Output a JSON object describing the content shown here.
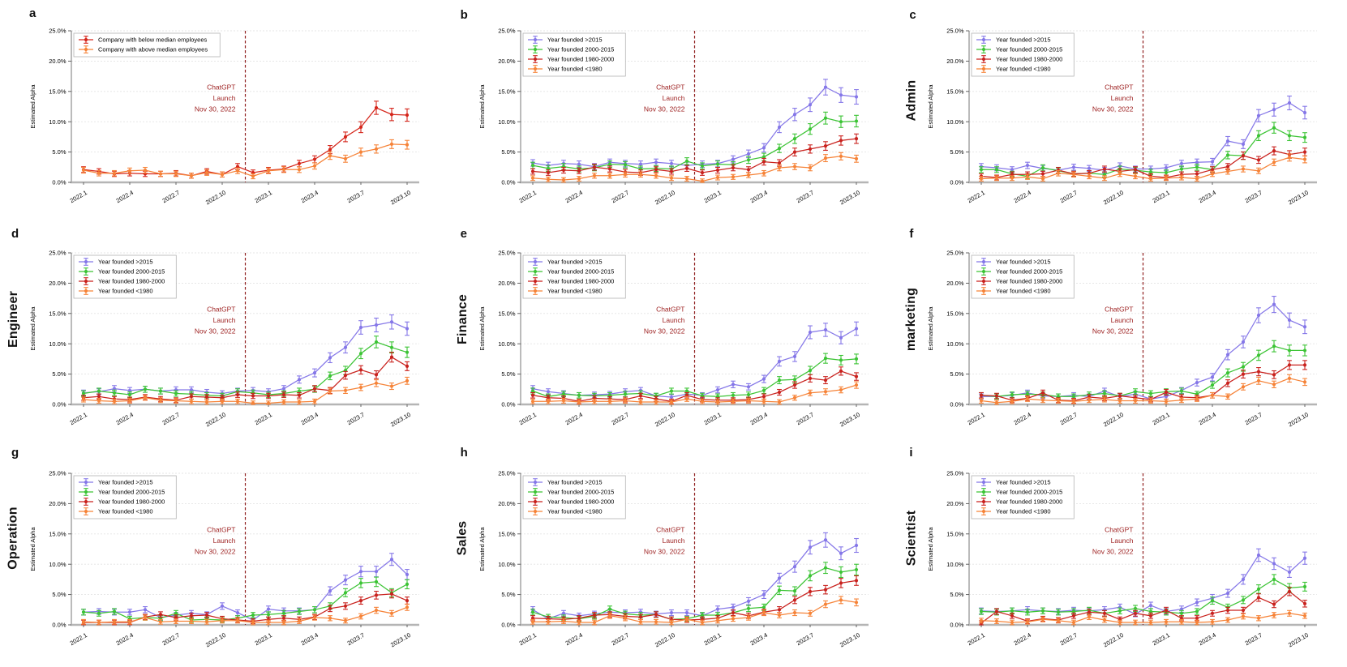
{
  "chart_common": {
    "ylabel": "Estimated Alpha",
    "ylim": [
      0,
      25
    ],
    "ytick_values": [
      0,
      5,
      10,
      15,
      20,
      25
    ],
    "ytick_labels": [
      "0.0%",
      "5.0%",
      "10.0%",
      "15.0%",
      "20.0%",
      "25.0%"
    ],
    "x_categories": [
      "2022.1",
      "2022.2",
      "2022.3",
      "2022.4",
      "2022.5",
      "2022.6",
      "2022.7",
      "2022.8",
      "2022.9",
      "2022.10",
      "2022.11",
      "2022.12",
      "2023.1",
      "2023.2",
      "2023.3",
      "2023.4",
      "2023.5",
      "2023.6",
      "2023.7",
      "2023.8",
      "2023.9",
      "2023.10"
    ],
    "xtick_indices": [
      0,
      3,
      6,
      9,
      12,
      15,
      18,
      21
    ],
    "vline_x": 10.5,
    "vline_color": "#8f1f1f",
    "annotation": {
      "lines": [
        "ChatGPT",
        "Launch",
        "Nov 30, 2022"
      ],
      "color": "#9e2222"
    },
    "error_bar": {
      "base": 0.35,
      "slope": 0.06
    },
    "grid_color": "#e4e4e4",
    "axis_color": "#777777",
    "baseline_color": "#b5b5b5",
    "legend_position": "upper-left",
    "grid": true
  },
  "chart_data": [
    {
      "type": "line",
      "panel_letter": "a",
      "row_label": "",
      "series": [
        {
          "name": "Company with below median employees",
          "color": "#d5261b",
          "values": [
            2.1,
            1.8,
            1.4,
            1.5,
            1.4,
            1.4,
            1.5,
            1.1,
            1.8,
            1.3,
            2.6,
            1.6,
            2.0,
            2.2,
            3.1,
            3.8,
            5.4,
            7.5,
            9.1,
            12.3,
            11.2,
            11.1
          ]
        },
        {
          "name": "Company with above median employees",
          "color": "#f68338",
          "values": [
            2.0,
            1.5,
            1.5,
            1.9,
            2.0,
            1.4,
            1.4,
            1.1,
            1.6,
            1.3,
            1.9,
            1.0,
            1.9,
            2.1,
            2.1,
            2.7,
            4.4,
            3.9,
            5.0,
            5.5,
            6.3,
            6.2
          ]
        }
      ]
    },
    {
      "type": "line",
      "panel_letter": "b",
      "row_label": "",
      "series": [
        {
          "name": "Year founded >2015",
          "color": "#8577e8",
          "values": [
            3.2,
            2.8,
            3.1,
            3.0,
            2.6,
            3.3,
            3.1,
            3.0,
            3.3,
            3.1,
            2.8,
            3.0,
            3.1,
            3.8,
            4.7,
            5.7,
            9.1,
            11.2,
            12.8,
            15.7,
            14.4,
            14.1
          ]
        },
        {
          "name": "Year founded 2000-2015",
          "color": "#3cc435",
          "values": [
            2.8,
            2.3,
            2.6,
            2.2,
            2.4,
            3.0,
            2.9,
            2.2,
            2.3,
            2.2,
            3.5,
            2.7,
            3.0,
            2.9,
            3.7,
            4.2,
            5.6,
            7.2,
            8.8,
            10.6,
            10.0,
            10.1
          ]
        },
        {
          "name": "Year founded 1980-2000",
          "color": "#c9221e",
          "values": [
            1.8,
            1.6,
            2.0,
            1.9,
            2.5,
            2.2,
            1.7,
            1.6,
            2.1,
            1.8,
            2.3,
            1.6,
            2.0,
            2.4,
            2.1,
            3.4,
            3.2,
            5.0,
            5.5,
            6.0,
            6.9,
            7.2
          ]
        },
        {
          "name": "Year founded <1980",
          "color": "#f68338",
          "values": [
            0.7,
            0.5,
            0.4,
            0.6,
            1.1,
            1.1,
            1.3,
            1.3,
            1.1,
            0.7,
            0.6,
            0.2,
            0.8,
            0.9,
            1.2,
            1.5,
            2.4,
            2.6,
            2.4,
            4.0,
            4.3,
            3.9
          ]
        }
      ]
    },
    {
      "type": "line",
      "panel_letter": "c",
      "row_label": "Admin",
      "series": [
        {
          "name": "Year founded >2015",
          "color": "#8577e8",
          "values": [
            2.6,
            2.4,
            2.1,
            2.8,
            2.3,
            2.0,
            2.5,
            2.3,
            2.0,
            2.7,
            2.2,
            2.2,
            2.4,
            3.1,
            3.3,
            3.4,
            6.8,
            6.3,
            11.0,
            12.0,
            13.1,
            11.5
          ]
        },
        {
          "name": "Year founded 2000-2015",
          "color": "#3cc435",
          "values": [
            2.1,
            2.1,
            1.4,
            1.0,
            2.4,
            1.9,
            1.4,
            1.5,
            1.3,
            2.2,
            2.0,
            1.7,
            1.6,
            2.2,
            2.5,
            2.1,
            4.5,
            4.4,
            7.7,
            9.0,
            7.7,
            7.4
          ]
        },
        {
          "name": "Year founded 1980-2000",
          "color": "#c9221e",
          "values": [
            1.0,
            0.8,
            1.3,
            1.3,
            1.4,
            2.0,
            1.4,
            1.5,
            2.2,
            1.8,
            2.1,
            1.0,
            0.8,
            1.3,
            1.4,
            2.1,
            2.6,
            4.4,
            3.7,
            5.2,
            4.6,
            5.0
          ]
        },
        {
          "name": "Year founded <1980",
          "color": "#f68338",
          "values": [
            0.6,
            0.7,
            0.7,
            0.9,
            0.6,
            1.5,
            1.3,
            1.0,
            0.7,
            1.4,
            1.0,
            0.6,
            0.7,
            0.8,
            0.6,
            1.4,
            1.8,
            2.2,
            1.9,
            3.3,
            4.1,
            3.8
          ]
        }
      ]
    },
    {
      "type": "line",
      "panel_letter": "d",
      "row_label": "Engineer",
      "series": [
        {
          "name": "Year founded >2015",
          "color": "#8577e8",
          "values": [
            1.9,
            2.1,
            2.6,
            2.3,
            2.5,
            2.2,
            2.4,
            2.4,
            2.0,
            1.8,
            2.2,
            2.3,
            2.1,
            2.6,
            4.1,
            5.2,
            7.7,
            9.4,
            12.7,
            13.1,
            13.6,
            12.5
          ]
        },
        {
          "name": "Year founded 2000-2015",
          "color": "#3cc435",
          "values": [
            1.8,
            2.2,
            1.9,
            1.6,
            2.5,
            2.2,
            1.8,
            1.7,
            1.5,
            1.4,
            2.1,
            1.9,
            1.6,
            1.8,
            2.2,
            2.5,
            4.7,
            5.6,
            8.4,
            10.3,
            9.4,
            8.6
          ]
        },
        {
          "name": "Year founded 1980-2000",
          "color": "#c9221e",
          "values": [
            1.1,
            1.3,
            0.9,
            0.8,
            1.2,
            0.9,
            0.7,
            1.3,
            1.2,
            1.1,
            1.6,
            1.4,
            1.4,
            1.6,
            1.5,
            2.6,
            2.3,
            4.8,
            5.7,
            4.9,
            7.8,
            6.3
          ]
        },
        {
          "name": "Year founded <1980",
          "color": "#f68338",
          "values": [
            0.8,
            0.6,
            0.5,
            0.6,
            1.1,
            0.7,
            0.6,
            0.5,
            0.4,
            0.5,
            0.5,
            0.2,
            0.2,
            0.4,
            0.4,
            0.5,
            2.2,
            2.3,
            2.8,
            3.5,
            3.0,
            3.9
          ]
        }
      ]
    },
    {
      "type": "line",
      "panel_letter": "e",
      "row_label": "Finance",
      "series": [
        {
          "name": "Year founded >2015",
          "color": "#8577e8",
          "values": [
            2.6,
            2.1,
            1.8,
            1.5,
            1.6,
            1.7,
            2.1,
            2.3,
            1.4,
            1.2,
            1.7,
            1.5,
            2.4,
            3.3,
            2.9,
            4.2,
            7.1,
            7.9,
            11.9,
            12.3,
            11.0,
            12.5
          ]
        },
        {
          "name": "Year founded 2000-2015",
          "color": "#3cc435",
          "values": [
            2.2,
            1.3,
            1.7,
            1.5,
            1.4,
            1.5,
            1.7,
            1.8,
            1.4,
            2.2,
            2.2,
            1.4,
            1.3,
            1.5,
            1.6,
            2.3,
            4.0,
            4.1,
            5.6,
            7.6,
            7.3,
            7.5
          ]
        },
        {
          "name": "Year founded 1980-2000",
          "color": "#c9221e",
          "values": [
            1.5,
            1.1,
            1.0,
            0.5,
            1.0,
            0.9,
            0.8,
            1.4,
            0.9,
            0.5,
            1.5,
            0.8,
            0.7,
            0.7,
            0.8,
            1.3,
            2.0,
            3.2,
            4.3,
            4.0,
            5.5,
            4.6
          ]
        },
        {
          "name": "Year founded <1980",
          "color": "#f68338",
          "values": [
            0.5,
            0.5,
            0.6,
            0.4,
            0.5,
            0.5,
            0.6,
            0.4,
            0.4,
            0.4,
            0.9,
            0.5,
            0.4,
            0.5,
            0.6,
            0.5,
            0.4,
            1.1,
            1.9,
            2.1,
            2.4,
            3.2
          ]
        }
      ]
    },
    {
      "type": "line",
      "panel_letter": "f",
      "row_label": "marketing",
      "series": [
        {
          "name": "Year founded >2015",
          "color": "#8577e8",
          "values": [
            1.3,
            1.3,
            1.5,
            1.9,
            1.4,
            1.3,
            1.5,
            1.3,
            2.2,
            1.3,
            1.7,
            0.9,
            1.3,
            2.3,
            3.6,
            4.5,
            8.2,
            10.3,
            14.7,
            16.5,
            13.9,
            12.8
          ]
        },
        {
          "name": "Year founded 2000-2015",
          "color": "#3cc435",
          "values": [
            1.5,
            1.3,
            1.6,
            1.7,
            1.6,
            1.3,
            1.3,
            1.6,
            1.8,
            1.4,
            2.1,
            1.8,
            2.1,
            2.2,
            1.7,
            3.2,
            5.2,
            6.2,
            8.1,
            9.6,
            8.9,
            8.9
          ]
        },
        {
          "name": "Year founded 1980-2000",
          "color": "#c9221e",
          "values": [
            1.5,
            1.4,
            0.7,
            1.0,
            1.9,
            0.7,
            0.6,
            1.2,
            1.0,
            1.4,
            1.1,
            0.8,
            2.0,
            1.2,
            1.1,
            1.5,
            3.5,
            5.0,
            5.4,
            4.9,
            6.5,
            6.5
          ]
        },
        {
          "name": "Year founded <1980",
          "color": "#f68338",
          "values": [
            0.6,
            0.3,
            0.5,
            0.9,
            0.7,
            0.6,
            0.5,
            0.7,
            0.8,
            0.6,
            0.6,
            0.6,
            0.5,
            0.7,
            0.9,
            1.5,
            1.3,
            2.9,
            3.9,
            3.3,
            4.3,
            3.7
          ]
        }
      ]
    },
    {
      "type": "line",
      "panel_letter": "g",
      "row_label": "Operation",
      "series": [
        {
          "name": "Year founded >2015",
          "color": "#8577e8",
          "values": [
            2.1,
            2.2,
            2.1,
            2.1,
            2.5,
            1.2,
            1.6,
            1.9,
            1.7,
            3.1,
            2.0,
            0.8,
            2.6,
            2.3,
            2.3,
            2.5,
            5.6,
            7.4,
            8.8,
            8.8,
            10.8,
            8.3
          ]
        },
        {
          "name": "Year founded 2000-2015",
          "color": "#3cc435",
          "values": [
            2.1,
            1.9,
            2.2,
            1.0,
            1.2,
            1.1,
            1.9,
            0.8,
            0.9,
            0.8,
            1.1,
            1.6,
            1.7,
            1.9,
            2.2,
            2.5,
            3.1,
            5.3,
            6.9,
            7.1,
            5.3,
            6.7
          ]
        },
        {
          "name": "Year founded 1980-2000",
          "color": "#c9221e",
          "values": [
            0.4,
            0.4,
            0.4,
            0.4,
            1.3,
            1.7,
            1.2,
            1.5,
            1.6,
            1.0,
            0.8,
            0.6,
            0.9,
            1.1,
            0.9,
            1.3,
            2.7,
            3.1,
            4.0,
            4.9,
            5.1,
            4.0
          ]
        },
        {
          "name": "Year founded <1980",
          "color": "#f68338",
          "values": [
            0.5,
            0.4,
            0.5,
            0.5,
            1.2,
            0.5,
            0.6,
            0.6,
            0.5,
            0.7,
            0.7,
            0.4,
            0.4,
            0.4,
            0.6,
            1.2,
            1.1,
            0.7,
            1.4,
            2.4,
            1.9,
            2.9
          ]
        }
      ]
    },
    {
      "type": "line",
      "panel_letter": "h",
      "row_label": "Sales",
      "series": [
        {
          "name": "Year founded >2015",
          "color": "#8577e8",
          "values": [
            2.5,
            1.0,
            1.9,
            1.5,
            1.8,
            2.1,
            2.0,
            2.1,
            1.8,
            2.0,
            2.0,
            1.5,
            2.6,
            2.9,
            3.9,
            5.0,
            7.7,
            9.6,
            12.8,
            14.0,
            11.8,
            13.1
          ]
        },
        {
          "name": "Year founded 2000-2015",
          "color": "#3cc435",
          "values": [
            2.1,
            1.3,
            1.2,
            1.0,
            1.4,
            2.6,
            1.8,
            1.6,
            1.7,
            0.9,
            1.0,
            1.6,
            1.6,
            2.0,
            2.7,
            2.9,
            5.7,
            5.6,
            8.1,
            9.4,
            8.7,
            9.1
          ]
        },
        {
          "name": "Year founded 1980-2000",
          "color": "#c9221e",
          "values": [
            1.1,
            1.0,
            0.9,
            1.1,
            1.6,
            1.7,
            1.4,
            1.3,
            1.7,
            0.9,
            0.8,
            0.9,
            1.1,
            2.0,
            1.5,
            2.1,
            2.5,
            4.1,
            5.5,
            5.8,
            6.9,
            7.3
          ]
        },
        {
          "name": "Year founded <1980",
          "color": "#f68338",
          "values": [
            0.5,
            0.5,
            0.6,
            0.4,
            0.4,
            1.5,
            1.1,
            0.5,
            0.5,
            0.4,
            0.9,
            0.4,
            0.7,
            1.0,
            1.2,
            2.0,
            1.6,
            2.0,
            1.9,
            3.4,
            4.1,
            3.7
          ]
        }
      ]
    },
    {
      "type": "line",
      "panel_letter": "i",
      "row_label": "Scientist",
      "series": [
        {
          "name": "Year founded >2015",
          "color": "#8577e8",
          "values": [
            2.3,
            2.2,
            2.3,
            2.5,
            2.3,
            2.2,
            2.4,
            2.3,
            2.5,
            2.9,
            1.8,
            3.2,
            2.2,
            2.6,
            3.7,
            4.4,
            5.2,
            7.5,
            11.5,
            10.1,
            8.7,
            11.0
          ]
        },
        {
          "name": "Year founded 2000-2015",
          "color": "#3cc435",
          "values": [
            2.2,
            2.1,
            2.3,
            2.1,
            2.3,
            2.1,
            2.2,
            2.4,
            1.9,
            2.3,
            2.7,
            2.2,
            2.1,
            1.9,
            2.2,
            4.0,
            2.9,
            4.1,
            5.9,
            7.5,
            6.1,
            6.3
          ]
        },
        {
          "name": "Year founded 1980-2000",
          "color": "#c9221e",
          "values": [
            0.3,
            2.2,
            1.5,
            0.6,
            1.0,
            0.8,
            1.5,
            2.1,
            1.9,
            0.9,
            1.9,
            1.5,
            2.4,
            1.1,
            1.1,
            1.9,
            2.4,
            2.4,
            4.5,
            3.4,
            5.5,
            3.5
          ]
        },
        {
          "name": "Year founded <1980",
          "color": "#f68338",
          "values": [
            0.7,
            0.6,
            0.4,
            0.5,
            0.9,
            0.7,
            0.4,
            1.3,
            0.8,
            0.4,
            0.4,
            0.4,
            0.5,
            0.5,
            0.4,
            0.5,
            0.8,
            1.4,
            1.1,
            1.6,
            1.9,
            1.5
          ]
        }
      ]
    }
  ]
}
